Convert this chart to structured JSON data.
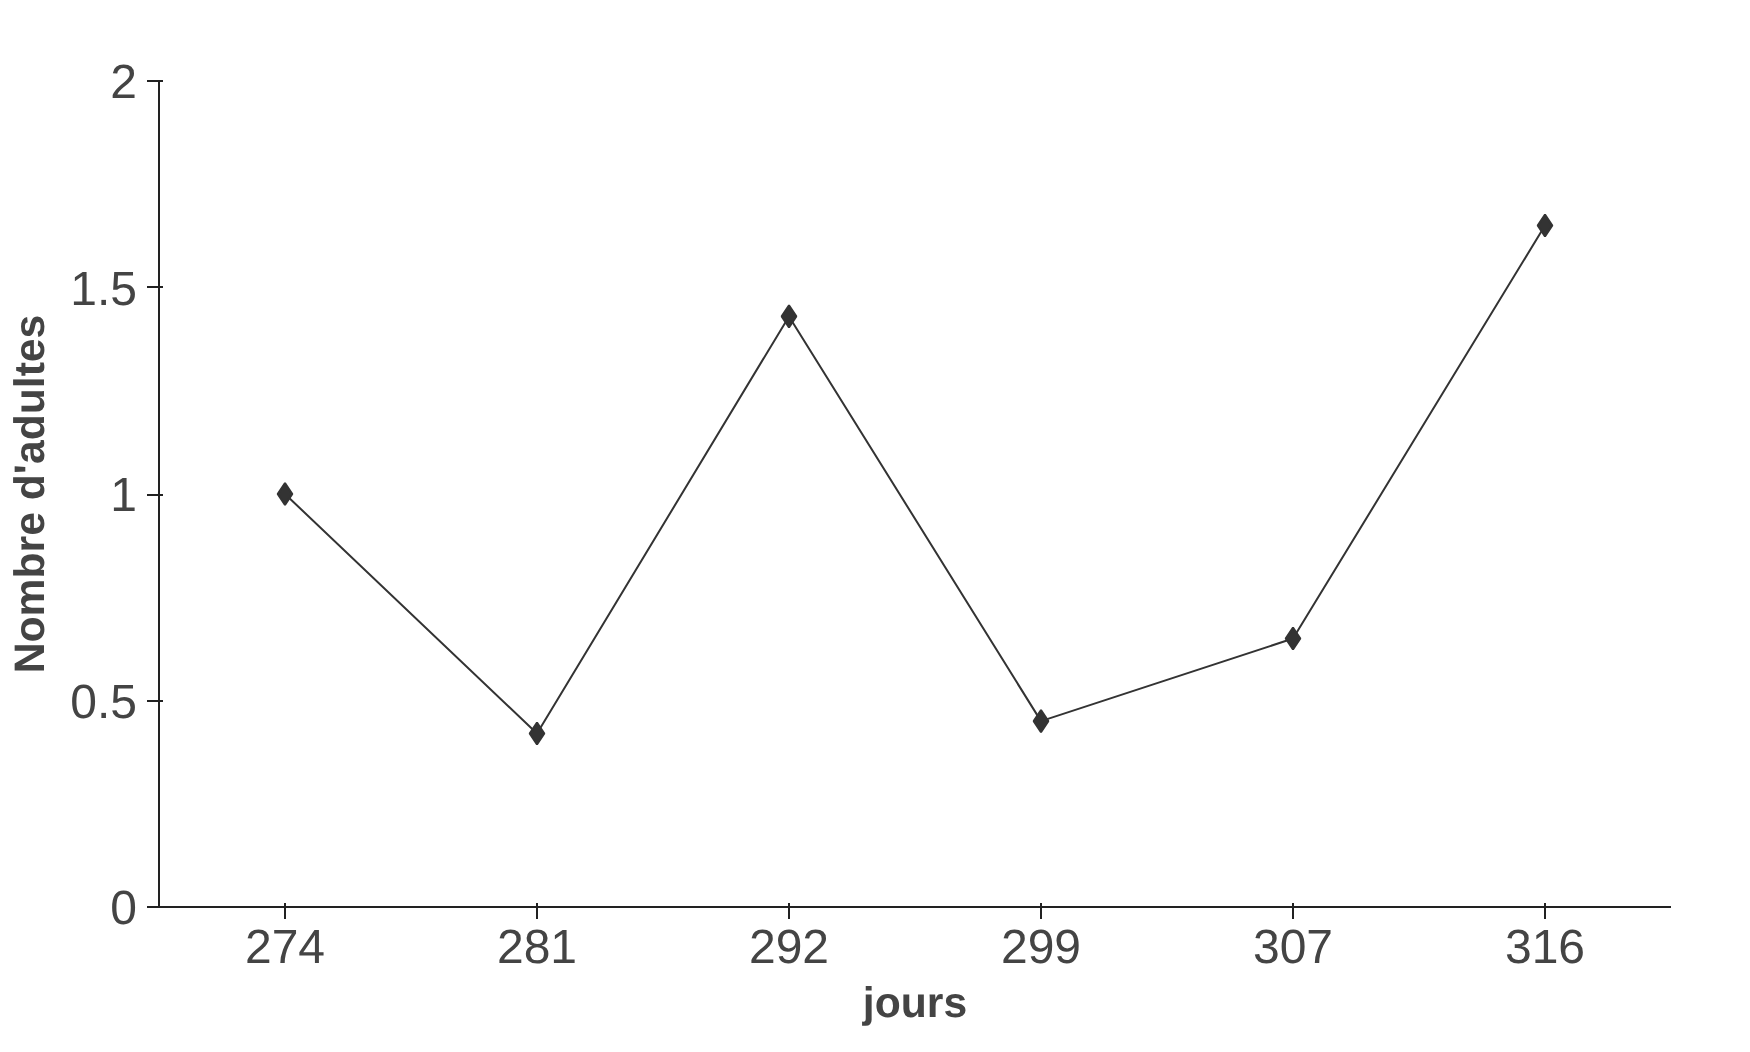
{
  "chart_data": {
    "type": "line",
    "xlabel": "jours",
    "ylabel": "Nombre d'adultes",
    "categories": [
      "274",
      "281",
      "292",
      "299",
      "307",
      "316"
    ],
    "values": [
      1.0,
      0.42,
      1.43,
      0.45,
      0.65,
      1.65
    ],
    "color": "#333333",
    "ylim": [
      0,
      2
    ],
    "yticks": [
      0,
      0.5,
      1,
      1.5,
      2
    ],
    "grid": false,
    "marker": "diamond",
    "line_style": "solid"
  }
}
